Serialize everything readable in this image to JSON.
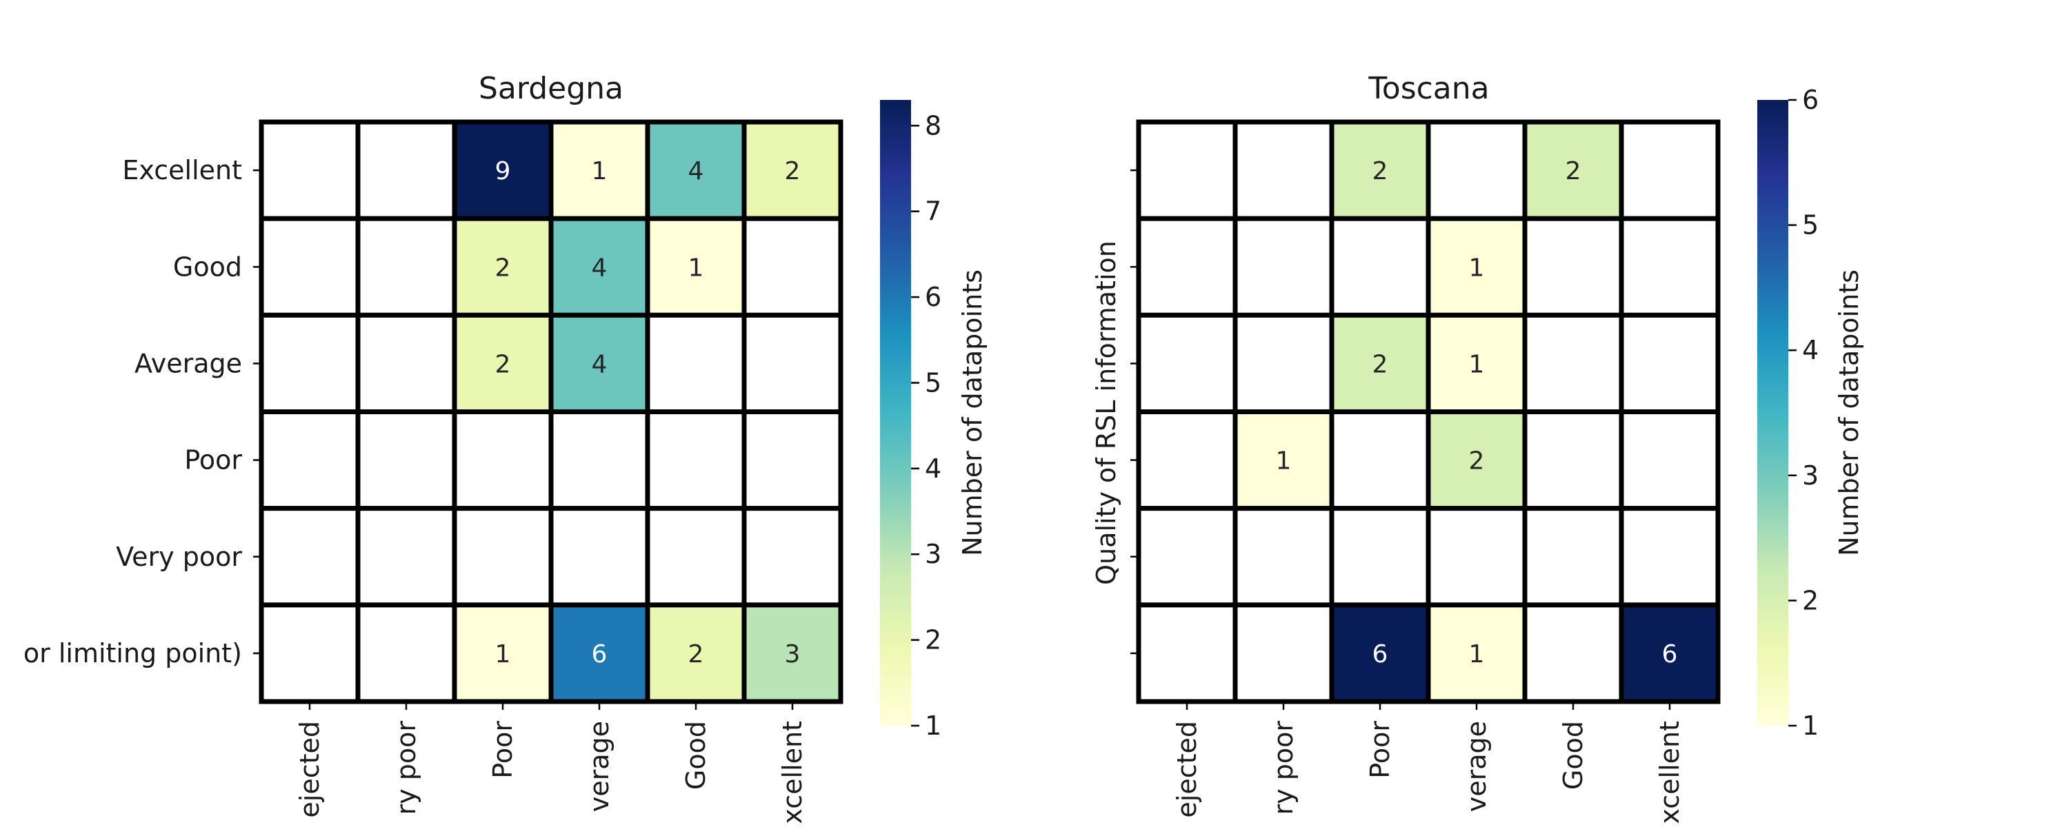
{
  "chart_data": [
    {
      "type": "heatmap",
      "title": "Sardegna",
      "ylabel": "",
      "xlabel": "",
      "x_categories": [
        "Rejected",
        "Very poor",
        "Poor",
        "Average",
        "Good",
        "Excellent"
      ],
      "x_tick_labels_visible": [
        "ejected",
        "ry poor",
        "Poor",
        "verage",
        "Good",
        "xcellent"
      ],
      "y_categories": [
        "Excellent",
        "Good",
        "Average",
        "Poor",
        "Very poor",
        "(or limiting point)"
      ],
      "y_tick_labels_visible": [
        "Excellent",
        "Good",
        "Average",
        "Poor",
        "Very poor",
        "or limiting point)"
      ],
      "values": [
        [
          null,
          null,
          9,
          1,
          4,
          2
        ],
        [
          null,
          null,
          2,
          4,
          1,
          null
        ],
        [
          null,
          null,
          2,
          4,
          null,
          null
        ],
        [
          null,
          null,
          null,
          null,
          null,
          null
        ],
        [
          null,
          null,
          null,
          null,
          null,
          null
        ],
        [
          null,
          null,
          1,
          6,
          2,
          3
        ]
      ],
      "colorbar": {
        "label": "Number of datapoints",
        "vmin": 1,
        "vmax": 8.3,
        "ticks": [
          1,
          2,
          3,
          4,
          5,
          6,
          7,
          8
        ]
      },
      "colormap": "YlGnBu",
      "grid": true
    },
    {
      "type": "heatmap",
      "title": "Toscana",
      "ylabel": "Quality of RSL information",
      "xlabel": "",
      "x_categories": [
        "Rejected",
        "Very poor",
        "Poor",
        "Average",
        "Good",
        "Excellent"
      ],
      "x_tick_labels_visible": [
        "ejected",
        "ry poor",
        "Poor",
        "verage",
        "Good",
        "xcellent"
      ],
      "y_categories": [
        "Excellent",
        "Good",
        "Average",
        "Poor",
        "Very poor",
        "(or limiting point)"
      ],
      "y_tick_labels_visible": [
        "",
        "",
        "",
        "",
        "",
        ""
      ],
      "values": [
        [
          null,
          null,
          2,
          null,
          2,
          null
        ],
        [
          null,
          null,
          null,
          1,
          null,
          null
        ],
        [
          null,
          null,
          2,
          1,
          null,
          null
        ],
        [
          null,
          1,
          null,
          2,
          null,
          null
        ],
        [
          null,
          null,
          null,
          null,
          null,
          null
        ],
        [
          null,
          null,
          6,
          1,
          null,
          6
        ]
      ],
      "colorbar": {
        "label": "Number of datapoints",
        "vmin": 1,
        "vmax": 6,
        "ticks": [
          1,
          2,
          3,
          4,
          5,
          6
        ]
      },
      "colormap": "YlGnBu",
      "grid": true
    }
  ]
}
